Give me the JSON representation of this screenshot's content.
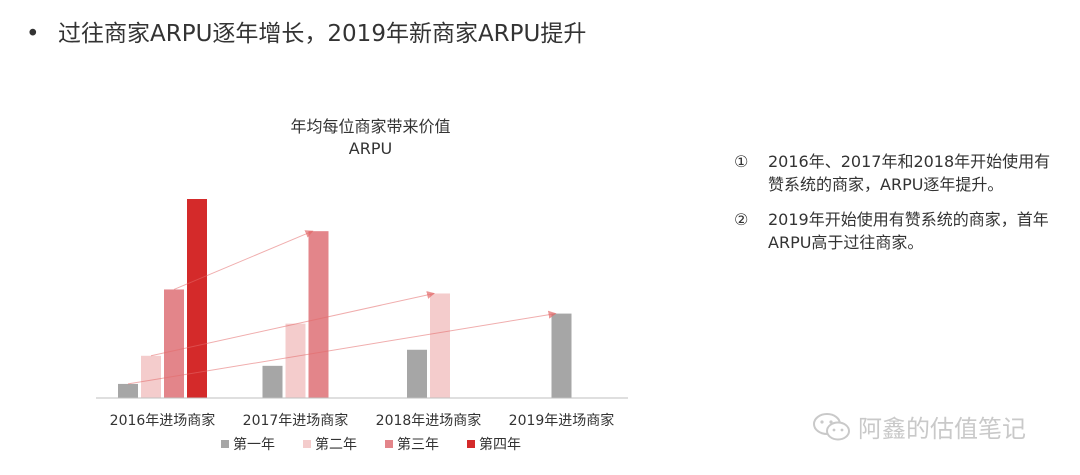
{
  "heading": {
    "bullet": "•",
    "text": "过往商家ARPU逐年增长，2019年新商家ARPU提升"
  },
  "chart_title": {
    "line1": "年均每位商家带来价值",
    "line2": "ARPU"
  },
  "notes": [
    {
      "num": "①",
      "text": "2016年、2017年和2018年开始使用有赞系统的商家，ARPU逐年提升。"
    },
    {
      "num": "②",
      "text": "2019年开始使用有赞系统的商家，首年ARPU高于过往商家。"
    }
  ],
  "watermark": {
    "text": "阿鑫的估值笔记"
  },
  "colors": {
    "year1": "#a6a6a6",
    "year2": "#f4cccc",
    "year3": "#e3858a",
    "year4": "#d42a2a",
    "arrow": "#e36a6a",
    "axis": "#bfbfbf"
  },
  "chart_data": {
    "type": "bar",
    "title": "年均每位商家带来价值 ARPU",
    "xlabel": "",
    "ylabel": "",
    "ylim": [
      0,
      100
    ],
    "categories": [
      "2016年进场商家",
      "2017年进场商家",
      "2018年进场商家",
      "2019年进场商家"
    ],
    "series": [
      {
        "name": "第一年",
        "values": [
          7,
          16,
          24,
          42
        ]
      },
      {
        "name": "第二年",
        "values": [
          21,
          37,
          52,
          null
        ]
      },
      {
        "name": "第三年",
        "values": [
          54,
          83,
          null,
          null
        ]
      },
      {
        "name": "第四年",
        "values": [
          99,
          null,
          null,
          null
        ]
      }
    ],
    "annotations": [
      {
        "type": "arrow",
        "series": "第三年",
        "from_category": "2016年进场商家",
        "to_category": "2017年进场商家"
      },
      {
        "type": "arrow",
        "series": "第二年",
        "from_category": "2016年进场商家",
        "to_category": "2018年进场商家"
      },
      {
        "type": "arrow",
        "series": "第一年",
        "from_category": "2016年进场商家",
        "to_category": "2019年进场商家"
      }
    ],
    "legend_position": "bottom",
    "grid": false
  }
}
